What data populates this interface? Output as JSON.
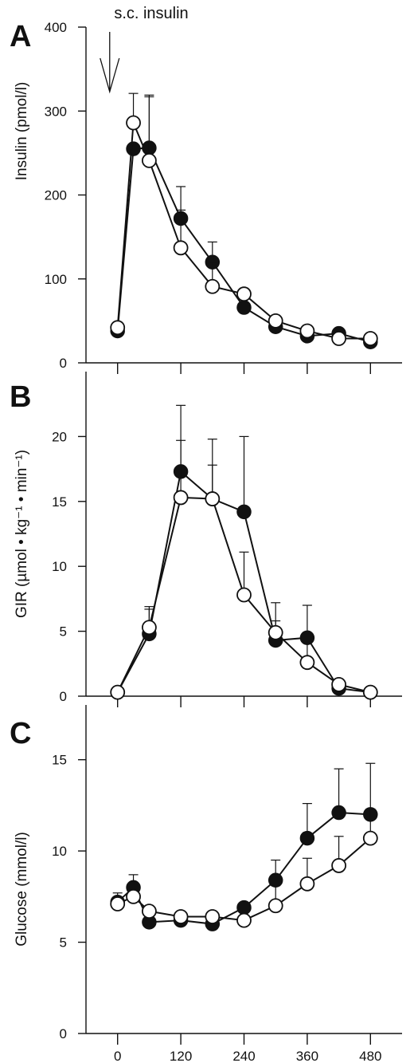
{
  "annotation": "s.c. insulin",
  "chart_data": [
    {
      "panel": "A",
      "type": "line",
      "ylabel": "Insulin (pmol/l)",
      "ylim": [
        0,
        400
      ],
      "yticks": [
        0,
        100,
        200,
        300,
        400
      ],
      "xlim": [
        -60,
        540
      ],
      "xticks": [
        0,
        120,
        240,
        360,
        480
      ],
      "annotations": [
        {
          "text": "s.c. insulin",
          "x": -15
        }
      ],
      "series": [
        {
          "style": "filled",
          "points": [
            {
              "x": 0,
              "y": 38
            },
            {
              "x": 30,
              "y": 255,
              "err": 0
            },
            {
              "x": 60,
              "y": 256,
              "err": 63
            },
            {
              "x": 120,
              "y": 172,
              "err": 38
            },
            {
              "x": 180,
              "y": 120,
              "err": 24
            },
            {
              "x": 240,
              "y": 66
            },
            {
              "x": 300,
              "y": 43
            },
            {
              "x": 360,
              "y": 32
            },
            {
              "x": 420,
              "y": 35
            },
            {
              "x": 480,
              "y": 25
            }
          ]
        },
        {
          "style": "open",
          "points": [
            {
              "x": 0,
              "y": 42
            },
            {
              "x": 30,
              "y": 286,
              "err": 35
            },
            {
              "x": 60,
              "y": 241,
              "err": 76
            },
            {
              "x": 120,
              "y": 137,
              "err": 45
            },
            {
              "x": 180,
              "y": 91,
              "err": 29
            },
            {
              "x": 240,
              "y": 82
            },
            {
              "x": 300,
              "y": 50
            },
            {
              "x": 360,
              "y": 38
            },
            {
              "x": 420,
              "y": 29
            },
            {
              "x": 480,
              "y": 29
            }
          ]
        }
      ]
    },
    {
      "panel": "B",
      "type": "line",
      "ylabel": "GIR (µmol • kg⁻¹ • min⁻¹)",
      "ylim": [
        0,
        25
      ],
      "yticks": [
        0,
        5,
        10,
        15,
        20
      ],
      "xlim": [
        -60,
        540
      ],
      "xticks": [
        0,
        120,
        240,
        360,
        480
      ],
      "series": [
        {
          "style": "filled",
          "points": [
            {
              "x": 0,
              "y": 0.3
            },
            {
              "x": 60,
              "y": 4.8,
              "err": 1.9
            },
            {
              "x": 120,
              "y": 17.3,
              "err": 5.1
            },
            {
              "x": 180,
              "y": 15.2,
              "err": 4.6
            },
            {
              "x": 240,
              "y": 14.2,
              "err": 5.8
            },
            {
              "x": 300,
              "y": 4.3,
              "err": 1.5
            },
            {
              "x": 360,
              "y": 4.5,
              "err": 2.5
            },
            {
              "x": 420,
              "y": 0.6
            },
            {
              "x": 480,
              "y": 0.3
            }
          ]
        },
        {
          "style": "open",
          "points": [
            {
              "x": 0,
              "y": 0.3
            },
            {
              "x": 60,
              "y": 5.3,
              "err": 1.6
            },
            {
              "x": 120,
              "y": 15.3,
              "err": 4.4
            },
            {
              "x": 180,
              "y": 15.2,
              "err": 2.6
            },
            {
              "x": 240,
              "y": 7.8,
              "err": 3.3
            },
            {
              "x": 300,
              "y": 4.9,
              "err": 2.3
            },
            {
              "x": 360,
              "y": 2.6,
              "err": 1.6
            },
            {
              "x": 420,
              "y": 0.9
            },
            {
              "x": 480,
              "y": 0.3
            }
          ]
        }
      ]
    },
    {
      "panel": "C",
      "type": "line",
      "ylabel": "Glucose (mmol/l)",
      "ylim": [
        0,
        18
      ],
      "yticks": [
        0,
        5,
        10,
        15
      ],
      "xlim": [
        -60,
        540
      ],
      "xticks": [
        0,
        120,
        240,
        360,
        480
      ],
      "series": [
        {
          "style": "filled",
          "points": [
            {
              "x": 0,
              "y": 7.2
            },
            {
              "x": 30,
              "y": 8.0,
              "err": 0.7
            },
            {
              "x": 60,
              "y": 6.1
            },
            {
              "x": 120,
              "y": 6.2
            },
            {
              "x": 180,
              "y": 6.0
            },
            {
              "x": 240,
              "y": 6.9
            },
            {
              "x": 300,
              "y": 8.4,
              "err": 1.1
            },
            {
              "x": 360,
              "y": 10.7,
              "err": 1.9
            },
            {
              "x": 420,
              "y": 12.1,
              "err": 2.4
            },
            {
              "x": 480,
              "y": 12.0,
              "err": 2.8
            }
          ]
        },
        {
          "style": "open",
          "points": [
            {
              "x": 0,
              "y": 7.1,
              "err": 0.6
            },
            {
              "x": 30,
              "y": 7.5
            },
            {
              "x": 60,
              "y": 6.7
            },
            {
              "x": 120,
              "y": 6.4
            },
            {
              "x": 180,
              "y": 6.4
            },
            {
              "x": 240,
              "y": 6.2
            },
            {
              "x": 300,
              "y": 7.0,
              "err": 1.1
            },
            {
              "x": 360,
              "y": 8.2,
              "err": 1.4
            },
            {
              "x": 420,
              "y": 9.2,
              "err": 1.6
            },
            {
              "x": 480,
              "y": 10.7,
              "err": 1.6
            }
          ]
        }
      ]
    }
  ]
}
